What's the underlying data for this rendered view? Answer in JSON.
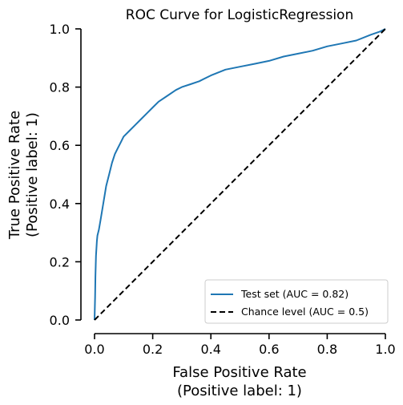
{
  "chart_data": {
    "type": "line",
    "title": "ROC Curve for LogisticRegression",
    "xlabel": [
      "False Positive Rate",
      "(Positive label: 1)"
    ],
    "ylabel": [
      "True Positive Rate",
      "(Positive label: 1)"
    ],
    "xlim": [
      0,
      1
    ],
    "ylim": [
      0,
      1
    ],
    "x_ticks": [
      "0.0",
      "0.2",
      "0.4",
      "0.6",
      "0.8",
      "1.0"
    ],
    "y_ticks": [
      "0.0",
      "0.2",
      "0.4",
      "0.6",
      "0.8",
      "1.0"
    ],
    "grid": false,
    "legend_position": "lower-right",
    "series": [
      {
        "name": "Test set (AUC = 0.82)",
        "color": "#1f77b4",
        "style": "solid",
        "x": [
          0.0,
          0.002,
          0.003,
          0.005,
          0.008,
          0.01,
          0.015,
          0.02,
          0.025,
          0.03,
          0.035,
          0.04,
          0.05,
          0.06,
          0.07,
          0.08,
          0.09,
          0.1,
          0.12,
          0.14,
          0.16,
          0.18,
          0.2,
          0.22,
          0.25,
          0.28,
          0.3,
          0.33,
          0.36,
          0.4,
          0.45,
          0.5,
          0.55,
          0.6,
          0.65,
          0.7,
          0.75,
          0.8,
          0.85,
          0.9,
          0.95,
          0.98,
          1.0
        ],
        "y": [
          0.0,
          0.08,
          0.15,
          0.22,
          0.27,
          0.29,
          0.31,
          0.34,
          0.37,
          0.4,
          0.43,
          0.46,
          0.5,
          0.54,
          0.57,
          0.59,
          0.61,
          0.63,
          0.65,
          0.67,
          0.69,
          0.71,
          0.73,
          0.75,
          0.77,
          0.79,
          0.8,
          0.81,
          0.82,
          0.84,
          0.86,
          0.87,
          0.88,
          0.89,
          0.905,
          0.915,
          0.925,
          0.94,
          0.95,
          0.96,
          0.98,
          0.99,
          1.0
        ]
      },
      {
        "name": "Chance level (AUC = 0.5)",
        "color": "#000000",
        "style": "dashed",
        "x": [
          0.0,
          1.0
        ],
        "y": [
          0.0,
          1.0
        ]
      }
    ]
  }
}
